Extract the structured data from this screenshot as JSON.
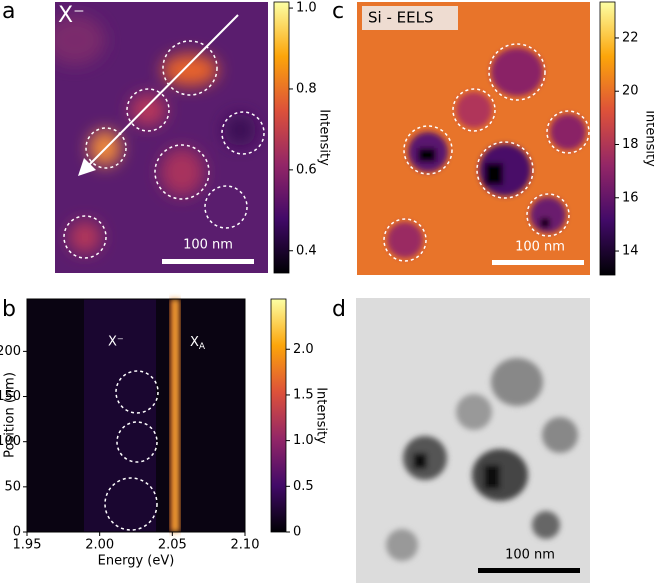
{
  "panels": {
    "a": {
      "label": "a",
      "annotation": "X⁻",
      "scale_bar": "100 nm",
      "colorbar": {
        "label": "Intensity",
        "lim": [
          0.345,
          1.015
        ],
        "ticks": [
          0.4,
          0.6,
          0.8,
          {
            "value": 1.0,
            "label": "1.0"
          }
        ]
      }
    },
    "b": {
      "label": "b",
      "type": "heatmap",
      "xlabel": "Energy (eV)",
      "ylabel": "Position (nm)",
      "xlim": [
        1.95,
        2.1
      ],
      "xticks": [
        1.95,
        {
          "value": 2.0,
          "label": "2.00"
        },
        2.05,
        {
          "value": 2.1,
          "label": "2.10"
        }
      ],
      "ylim": [
        0,
        258
      ],
      "yticks": [
        0,
        50,
        100,
        150,
        200
      ],
      "annotations": [
        {
          "text": "X⁻"
        },
        {
          "text": "X",
          "sub": "A"
        }
      ],
      "colorbar": {
        "label": "Intensity",
        "lim": [
          0,
          2.55
        ],
        "ticks": [
          0,
          0.5,
          {
            "value": 1.0,
            "label": "1.0"
          },
          1.5,
          {
            "value": 2.0,
            "label": "2.0"
          }
        ]
      }
    },
    "c": {
      "label": "c",
      "annotation": "Si - EELS",
      "scale_bar": "100 nm",
      "colorbar": {
        "label": "Intensity",
        "lim": [
          13.1,
          23.35
        ],
        "ticks": [
          14,
          16,
          18,
          20,
          22
        ]
      }
    },
    "d": {
      "label": "d",
      "scale_bar": "100 nm"
    }
  }
}
